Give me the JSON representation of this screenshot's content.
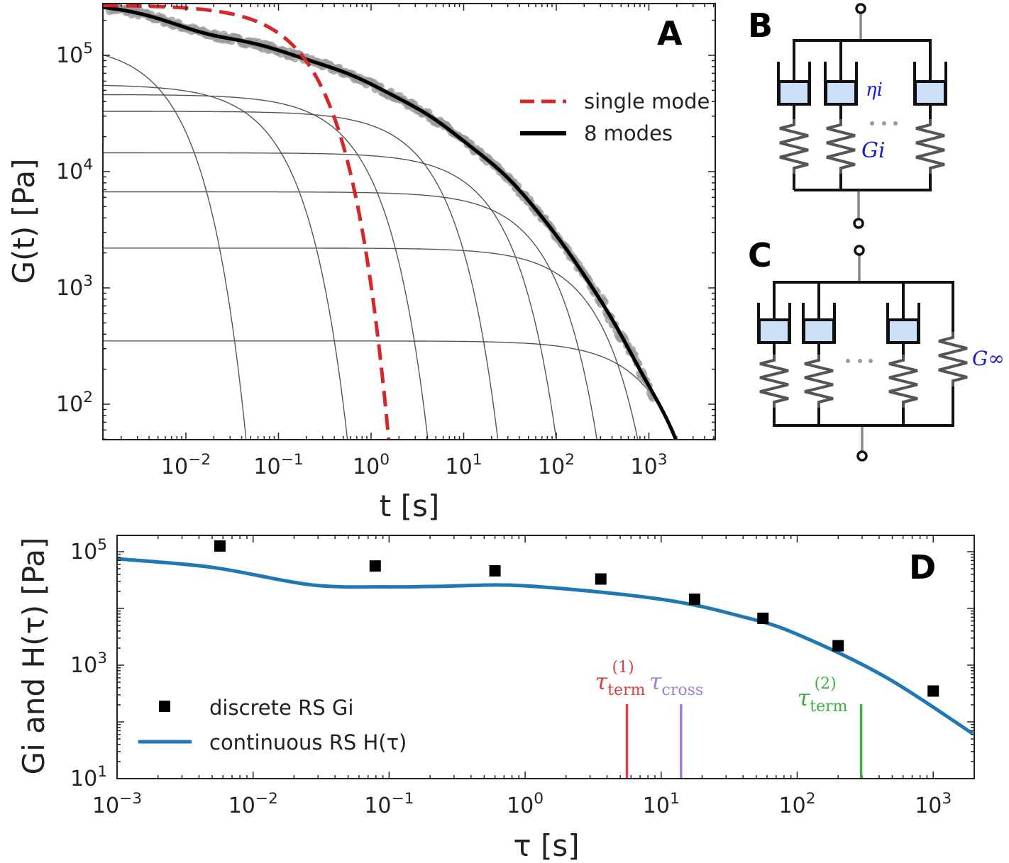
{
  "panel_A": {
    "letter": "A",
    "ylabel": "G(t) [Pa]",
    "xlabel": "t [s]",
    "legend": [
      "single mode",
      "8 modes"
    ],
    "colors": {
      "single_mode": "#d62728",
      "fit": "#000000",
      "data": "#999999",
      "modes": "#555555"
    }
  },
  "panel_B": {
    "letter": "B",
    "eta_label": "ηi",
    "G_label": "Gi"
  },
  "panel_C": {
    "letter": "C",
    "Ginf_label": "G∞"
  },
  "panel_D": {
    "letter": "D",
    "ylabel": "Gi and H(τ) [Pa]",
    "xlabel": "τ [s]",
    "legend": [
      "discrete RS Gi",
      "continuous RS H(τ)"
    ],
    "colors": {
      "discrete": "#000000",
      "continuous": "#1f77b4",
      "term1": "#e04040",
      "cross": "#a07fd0",
      "term2": "#3cb043"
    }
  },
  "chart_data": [
    {
      "type": "line",
      "panel": "A",
      "xlabel": "t [s]",
      "ylabel": "G(t) [Pa]",
      "xscale": "log",
      "yscale": "log",
      "xlim": [
        0.00126,
        5400
      ],
      "ylim": [
        50,
        280000
      ],
      "x_tick_exponents": [
        -2,
        -1,
        0,
        1,
        2,
        3
      ],
      "y_tick_exponents": [
        2,
        3,
        4,
        5
      ],
      "grid": false,
      "legend_position": "top-right",
      "series": [
        {
          "name": "single mode",
          "style": "dashed",
          "G0": 270000,
          "tau": 0.18
        },
        {
          "name": "8 modes",
          "style": "solid",
          "modes": "sum of G_i exp(-t/tau_i) from discrete RS"
        },
        {
          "style": "gray markers (experimental data)",
          "t_range": [
            0.0015,
            1100
          ]
        }
      ],
      "modes": {
        "tau": [
          0.0057,
          0.079,
          0.6,
          3.6,
          17.6,
          56,
          200,
          1000
        ],
        "G": [
          126000,
          56000,
          46000,
          33000,
          14500,
          6700,
          2200,
          350
        ]
      }
    },
    {
      "type": "scatter",
      "panel": "D",
      "xlabel": "τ [s]",
      "ylabel": "Gi and H(τ) [Pa]",
      "xscale": "log",
      "yscale": "log",
      "xlim": [
        0.001,
        2000
      ],
      "ylim": [
        10,
        194000
      ],
      "x_tick_exponents": [
        -3,
        -2,
        -1,
        0,
        1,
        2,
        3
      ],
      "y_tick_exponents": [
        1,
        3,
        5
      ],
      "grid": false,
      "legend_position": "bottom-left",
      "series": [
        {
          "name": "discrete RS Gi",
          "marker": "square",
          "x": [
            0.0057,
            0.079,
            0.6,
            3.6,
            17.6,
            56,
            200,
            1000
          ],
          "y": [
            126000,
            56000,
            46000,
            33000,
            14500,
            6700,
            2200,
            350
          ]
        },
        {
          "name": "continuous RS H(τ)",
          "marker": "line",
          "x": [
            0.001,
            0.005,
            0.027,
            0.1,
            0.23,
            1,
            10,
            41,
            100,
            450,
            1950
          ],
          "y": [
            75000,
            53000,
            26000,
            24000,
            24500,
            25000,
            14500,
            7000,
            3500,
            610,
            62
          ]
        }
      ],
      "annotations": [
        {
          "symbol": "τ",
          "sub": "term",
          "sup": "(1)",
          "x": 5.6
        },
        {
          "symbol": "τ",
          "sub": "cross",
          "sup": "",
          "x": 14
        },
        {
          "symbol": "τ",
          "sub": "term",
          "sup": "(2)",
          "x": 295
        }
      ]
    }
  ]
}
